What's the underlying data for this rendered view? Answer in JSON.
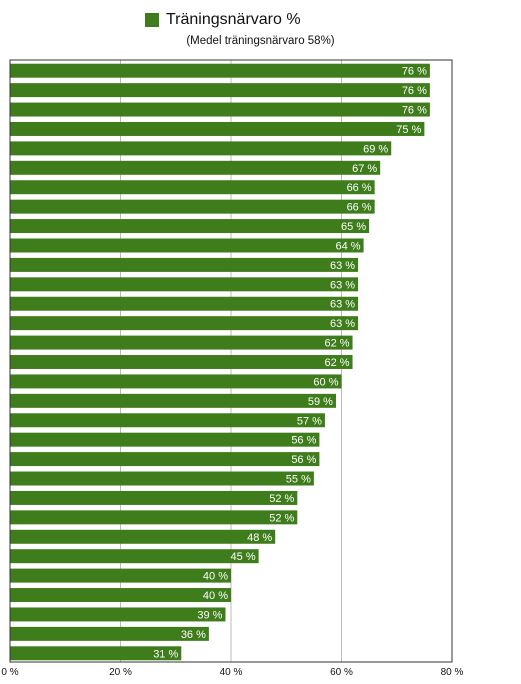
{
  "chart_data": {
    "type": "bar",
    "orientation": "horizontal",
    "legend": {
      "placement": "top-center",
      "entries": [
        "Träningsnärvaro %"
      ]
    },
    "series": [
      {
        "name": "Träningsnärvaro %",
        "color": "#3f7d1c",
        "values": [
          76,
          76,
          76,
          75,
          69,
          67,
          66,
          66,
          65,
          64,
          63,
          63,
          63,
          63,
          62,
          62,
          60,
          59,
          57,
          56,
          56,
          55,
          52,
          52,
          48,
          45,
          40,
          40,
          39,
          36,
          31
        ],
        "data_labels": [
          "76 %",
          "76 %",
          "76 %",
          "75 %",
          "69 %",
          "67 %",
          "66 %",
          "66 %",
          "65 %",
          "64 %",
          "63 %",
          "63 %",
          "63 %",
          "63 %",
          "62 %",
          "62 %",
          "60 %",
          "59 %",
          "57 %",
          "56 %",
          "56 %",
          "55 %",
          "52 %",
          "52 %",
          "48 %",
          "45 %",
          "40 %",
          "40 %",
          "39 %",
          "36 %",
          "31 %"
        ]
      }
    ],
    "subtitle": "(Medel träningsnärvaro 58%)",
    "xlim": [
      0,
      80
    ],
    "xticks": [
      0,
      20,
      40,
      60,
      80
    ],
    "xtick_labels": [
      "0 %",
      "20 %",
      "40 %",
      "60 %",
      "80 %"
    ],
    "grid": true,
    "colors": {
      "bar": "#3f7d1c",
      "grid": "#bbbbbb",
      "frame": "#333333"
    }
  }
}
